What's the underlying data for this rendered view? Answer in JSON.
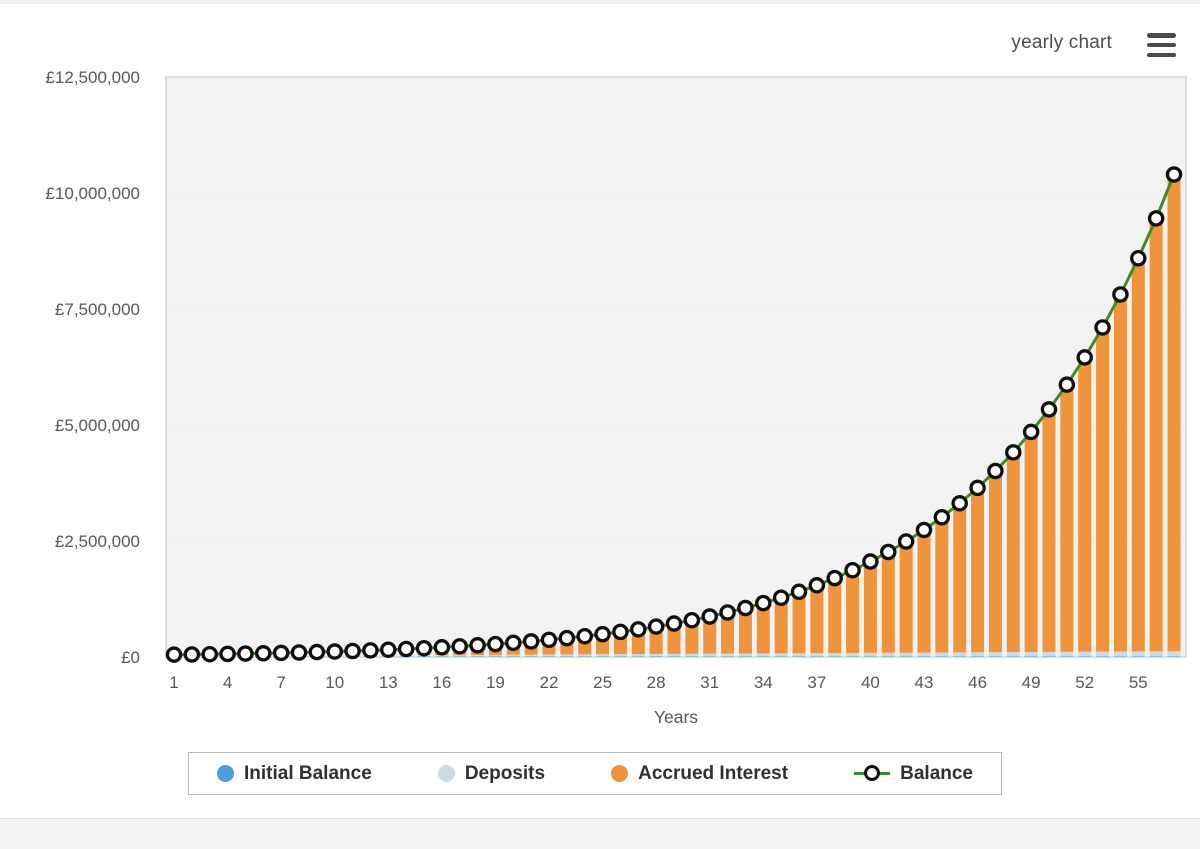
{
  "header": {
    "title": "yearly chart",
    "menu_icon": "hamburger-menu-icon"
  },
  "colors": {
    "page_background": "#ffffff",
    "plot_background": "#f2f2f2",
    "plot_border": "#ccd6de",
    "gridline": "#e0e0e0",
    "axis_text": "#58585a",
    "initial_balance": "#4aa0dc",
    "deposits": "#ccdae3",
    "accrued_interest": "#f0943c",
    "balance_line": "#3f8a28",
    "marker_fill": "#ffffff",
    "marker_stroke": "#101010"
  },
  "chart_data": {
    "type": "bar",
    "stacked": true,
    "overlay": "line",
    "title": "yearly chart",
    "xlabel": "Years",
    "ylabel": "",
    "ylim": [
      0,
      12500000
    ],
    "grid": true,
    "legend_position": "bottom",
    "x": [
      1,
      2,
      3,
      4,
      5,
      6,
      7,
      8,
      9,
      10,
      11,
      12,
      13,
      14,
      15,
      16,
      17,
      18,
      19,
      20,
      21,
      22,
      23,
      24,
      25,
      26,
      27,
      28,
      29,
      30,
      31,
      32,
      33,
      34,
      35,
      36,
      37,
      38,
      39,
      40,
      41,
      42,
      43,
      44,
      45,
      46,
      47,
      48,
      49,
      50,
      51,
      52,
      53,
      54,
      55,
      56,
      57
    ],
    "x_tick_years": [
      1,
      4,
      7,
      10,
      13,
      16,
      19,
      22,
      25,
      28,
      31,
      34,
      37,
      40,
      43,
      46,
      49,
      52,
      55
    ],
    "y_ticks": [
      {
        "label": "£0",
        "value": 0
      },
      {
        "label": "£2,500,000",
        "value": 2500000
      },
      {
        "label": "£5,000,000",
        "value": 5000000
      },
      {
        "label": "£7,500,000",
        "value": 7500000
      },
      {
        "label": "£10,000,000",
        "value": 10000000
      },
      {
        "label": "£12,500,000",
        "value": 12500000
      }
    ],
    "series": [
      {
        "name": "Initial Balance",
        "color": "#4aa0dc",
        "values": [
          10000,
          10000,
          10000,
          10000,
          10000,
          10000,
          10000,
          10000,
          10000,
          10000,
          10000,
          10000,
          10000,
          10000,
          10000,
          10000,
          10000,
          10000,
          10000,
          10000,
          10000,
          10000,
          10000,
          10000,
          10000,
          10000,
          10000,
          10000,
          10000,
          10000,
          10000,
          10000,
          10000,
          10000,
          10000,
          10000,
          10000,
          10000,
          10000,
          10000,
          10000,
          10000,
          10000,
          10000,
          10000,
          10000,
          10000,
          10000,
          10000,
          10000,
          10000,
          10000,
          10000,
          10000,
          10000,
          10000,
          10000
        ]
      },
      {
        "name": "Deposits",
        "color": "#ccdae3",
        "values": [
          2000,
          4000,
          6000,
          8000,
          10000,
          12000,
          14000,
          16000,
          18000,
          20000,
          22000,
          24000,
          26000,
          28000,
          30000,
          32000,
          34000,
          36000,
          38000,
          40000,
          42000,
          44000,
          46000,
          48000,
          50000,
          52000,
          54000,
          56000,
          58000,
          60000,
          62000,
          64000,
          66000,
          68000,
          70000,
          72000,
          74000,
          76000,
          78000,
          80000,
          82000,
          84000,
          86000,
          88000,
          90000,
          92000,
          94000,
          96000,
          98000,
          100000,
          102000,
          104000,
          106000,
          108000,
          110000,
          112000,
          114000
        ]
      },
      {
        "name": "Accrued Interest",
        "color": "#f0943c",
        "values": [
          38000,
          41000,
          44500,
          48550,
          53205,
          58526,
          64578,
          71436,
          79179,
          87897,
          97687,
          108656,
          120921,
          134613,
          149875,
          166862,
          185749,
          206723,
          229996,
          255795,
          284375,
          316012,
          351014,
          389715,
          432486,
          479735,
          531909,
          589500,
          653050,
          723155,
          800470,
          885717,
          979689,
          1083258,
          1197384,
          1323122,
          1461634,
          1614198,
          1782218,
          1967239,
          2170963,
          2395260,
          2642186,
          2914004,
          3213205,
          3542525,
          3904978,
          4303876,
          4742863,
          5225949,
          5757544,
          6342499,
          6986149,
          7694364,
          8473600,
          9330960,
          10274256
        ]
      }
    ],
    "line_series": {
      "name": "Balance",
      "line_color": "#3f8a28",
      "marker_fill": "#ffffff",
      "marker_stroke": "#101010",
      "values": [
        50000,
        55000,
        60500,
        66550,
        73205,
        80526,
        88578,
        97436,
        107179,
        117897,
        129687,
        142656,
        156921,
        172613,
        189875,
        208862,
        229749,
        252723,
        277996,
        305795,
        336375,
        370012,
        407014,
        447715,
        492486,
        541735,
        595909,
        655500,
        721050,
        793155,
        872470,
        959717,
        1055689,
        1161258,
        1277384,
        1405122,
        1545634,
        1700198,
        1870218,
        2057239,
        2262963,
        2489260,
        2738186,
        3012004,
        3313205,
        3644525,
        4008978,
        4409876,
        4850863,
        5335949,
        5869544,
        6456499,
        7102149,
        7812364,
        8593600,
        9452960,
        10398256
      ]
    }
  }
}
